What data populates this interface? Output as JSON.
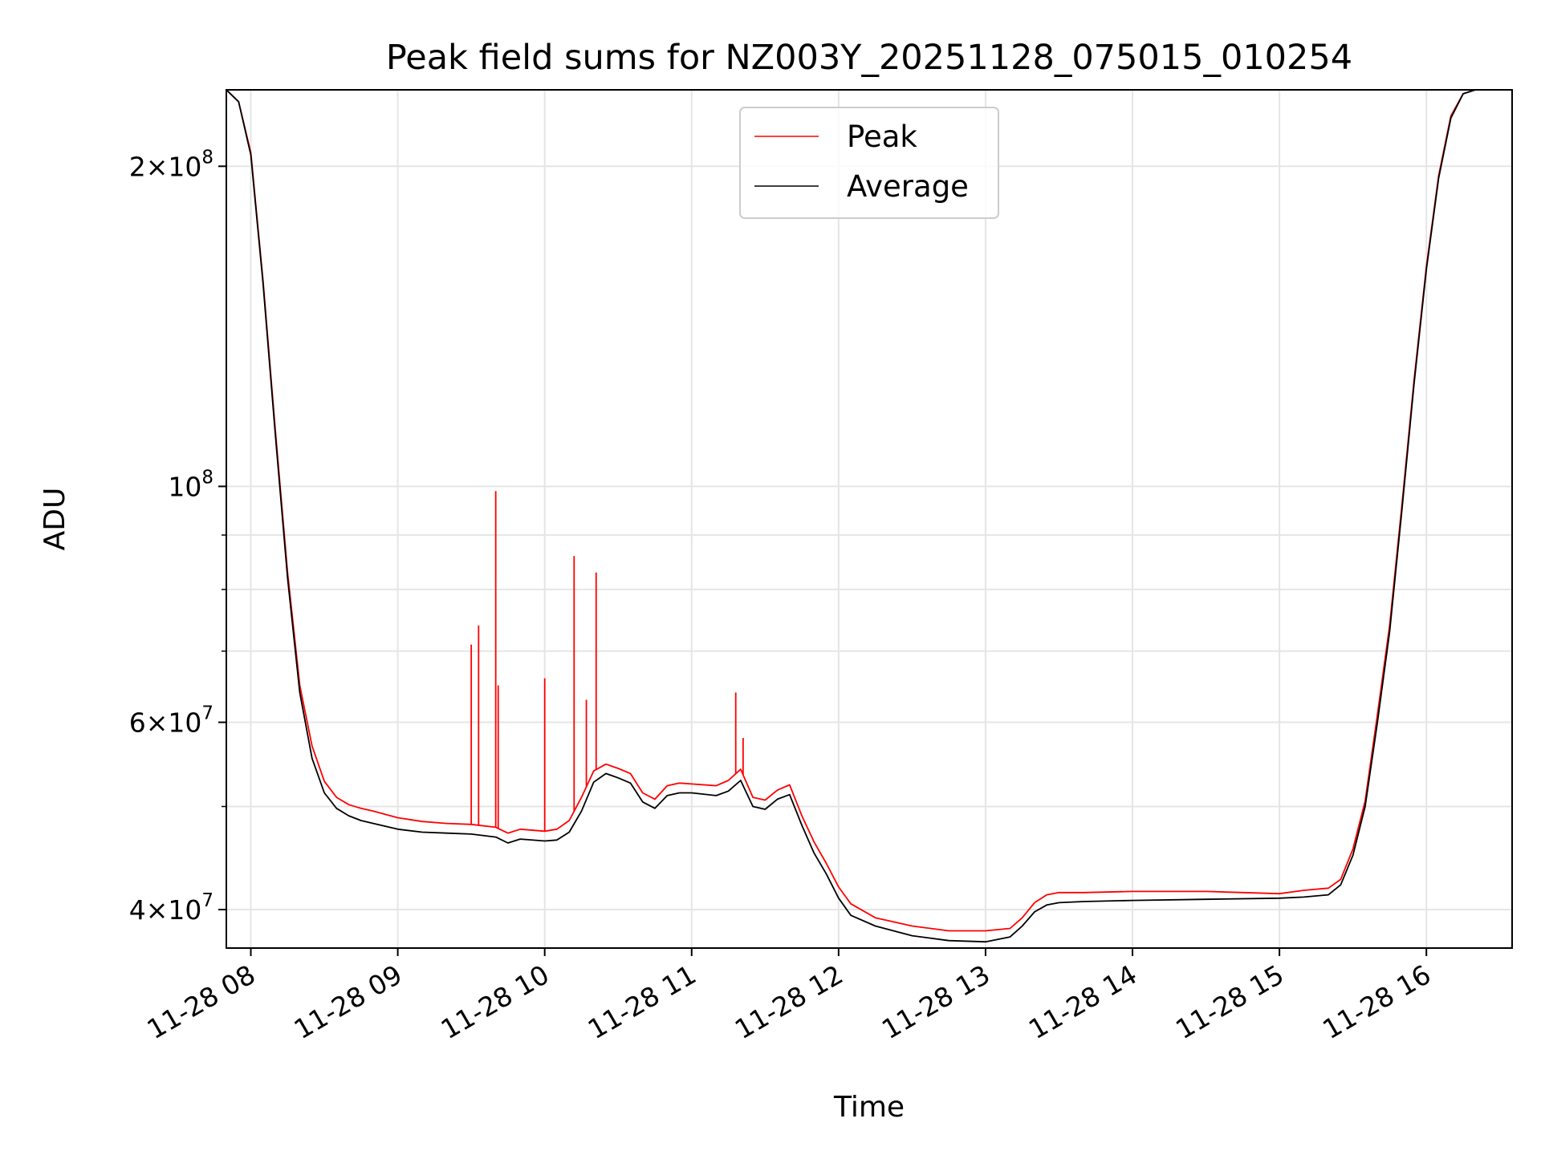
{
  "chart_data": {
    "type": "line",
    "title": "Peak field sums for NZ003Y_20251128_075015_010254",
    "xlabel": "Time",
    "ylabel": "ADU",
    "yscale": "log",
    "ylim": [
      36800000,
      236000000
    ],
    "xlim": [
      "2025-11-28 07:50",
      "2025-11-28 16:35"
    ],
    "grid": true,
    "legend": {
      "position": "top-center",
      "entries": [
        "Peak",
        "Average"
      ]
    },
    "colors": {
      "Peak": "#ff0000",
      "Average": "#000000",
      "grid": "#e5e5e5"
    },
    "x_ticks": [
      "11-28 08",
      "11-28 09",
      "11-28 10",
      "11-28 11",
      "11-28 12",
      "11-28 13",
      "11-28 14",
      "11-28 15",
      "11-28 16"
    ],
    "y_ticks": [
      {
        "value": 200000000,
        "mant": "2",
        "exp": "8"
      },
      {
        "value": 100000000,
        "mant": "",
        "exp": "8"
      },
      {
        "value": 60000000,
        "mant": "6",
        "exp": "7"
      },
      {
        "value": 40000000,
        "mant": "4",
        "exp": "7"
      }
    ],
    "series": [
      {
        "name": "Average",
        "x": [
          "2025-11-28 07:50",
          "2025-11-28 07:55",
          "2025-11-28 08:00",
          "2025-11-28 08:05",
          "2025-11-28 08:10",
          "2025-11-28 08:15",
          "2025-11-28 08:20",
          "2025-11-28 08:25",
          "2025-11-28 08:30",
          "2025-11-28 08:35",
          "2025-11-28 08:40",
          "2025-11-28 08:45",
          "2025-11-28 08:50",
          "2025-11-28 09:00",
          "2025-11-28 09:10",
          "2025-11-28 09:20",
          "2025-11-28 09:30",
          "2025-11-28 09:40",
          "2025-11-28 09:45",
          "2025-11-28 09:50",
          "2025-11-28 10:00",
          "2025-11-28 10:05",
          "2025-11-28 10:10",
          "2025-11-28 10:15",
          "2025-11-28 10:20",
          "2025-11-28 10:25",
          "2025-11-28 10:30",
          "2025-11-28 10:35",
          "2025-11-28 10:40",
          "2025-11-28 10:45",
          "2025-11-28 10:50",
          "2025-11-28 10:55",
          "2025-11-28 11:00",
          "2025-11-28 11:10",
          "2025-11-28 11:15",
          "2025-11-28 11:20",
          "2025-11-28 11:25",
          "2025-11-28 11:30",
          "2025-11-28 11:35",
          "2025-11-28 11:40",
          "2025-11-28 11:45",
          "2025-11-28 11:50",
          "2025-11-28 11:55",
          "2025-11-28 12:00",
          "2025-11-28 12:05",
          "2025-11-28 12:15",
          "2025-11-28 12:30",
          "2025-11-28 12:45",
          "2025-11-28 13:00",
          "2025-11-28 13:10",
          "2025-11-28 13:15",
          "2025-11-28 13:20",
          "2025-11-28 13:25",
          "2025-11-28 13:30",
          "2025-11-28 13:40",
          "2025-11-28 14:00",
          "2025-11-28 14:30",
          "2025-11-28 15:00",
          "2025-11-28 15:10",
          "2025-11-28 15:20",
          "2025-11-28 15:25",
          "2025-11-28 15:30",
          "2025-11-28 15:35",
          "2025-11-28 15:40",
          "2025-11-28 15:45",
          "2025-11-28 15:50",
          "2025-11-28 15:55",
          "2025-11-28 16:00",
          "2025-11-28 16:05",
          "2025-11-28 16:10",
          "2025-11-28 16:15",
          "2025-11-28 16:20",
          "2025-11-28 16:25",
          "2025-11-28 16:30",
          "2025-11-28 16:35"
        ],
        "values": [
          236000000,
          230000000,
          205000000,
          155000000,
          112000000,
          82000000,
          64000000,
          55500000,
          51500000,
          49800000,
          49000000,
          48500000,
          48200000,
          47600000,
          47300000,
          47200000,
          47100000,
          46800000,
          46200000,
          46600000,
          46400000,
          46500000,
          47300000,
          49500000,
          52700000,
          53700000,
          53200000,
          52600000,
          50500000,
          49800000,
          51200000,
          51500000,
          51500000,
          51200000,
          51700000,
          52900000,
          50000000,
          49700000,
          50800000,
          51300000,
          48000000,
          45200000,
          43200000,
          41000000,
          39500000,
          38600000,
          37800000,
          37400000,
          37300000,
          37700000,
          38600000,
          39800000,
          40400000,
          40600000,
          40700000,
          40800000,
          40900000,
          41000000,
          41100000,
          41300000,
          42200000,
          45000000,
          50000000,
          60000000,
          73000000,
          95000000,
          125000000,
          160000000,
          195000000,
          222000000,
          234000000,
          236000000,
          236000000,
          236000000,
          236000000
        ]
      },
      {
        "name": "Peak",
        "x": [
          "2025-11-28 07:50",
          "2025-11-28 07:55",
          "2025-11-28 08:00",
          "2025-11-28 08:05",
          "2025-11-28 08:10",
          "2025-11-28 08:15",
          "2025-11-28 08:20",
          "2025-11-28 08:25",
          "2025-11-28 08:30",
          "2025-11-28 08:35",
          "2025-11-28 08:40",
          "2025-11-28 08:45",
          "2025-11-28 08:50",
          "2025-11-28 09:00",
          "2025-11-28 09:10",
          "2025-11-28 09:20",
          "2025-11-28 09:30",
          "2025-11-28 09:40",
          "2025-11-28 09:45",
          "2025-11-28 09:50",
          "2025-11-28 10:00",
          "2025-11-28 10:05",
          "2025-11-28 10:10",
          "2025-11-28 10:15",
          "2025-11-28 10:20",
          "2025-11-28 10:25",
          "2025-11-28 10:30",
          "2025-11-28 10:35",
          "2025-11-28 10:40",
          "2025-11-28 10:45",
          "2025-11-28 10:50",
          "2025-11-28 10:55",
          "2025-11-28 11:00",
          "2025-11-28 11:10",
          "2025-11-28 11:15",
          "2025-11-28 11:20",
          "2025-11-28 11:25",
          "2025-11-28 11:30",
          "2025-11-28 11:35",
          "2025-11-28 11:40",
          "2025-11-28 11:45",
          "2025-11-28 11:50",
          "2025-11-28 11:55",
          "2025-11-28 12:00",
          "2025-11-28 12:05",
          "2025-11-28 12:15",
          "2025-11-28 12:30",
          "2025-11-28 12:45",
          "2025-11-28 13:00",
          "2025-11-28 13:10",
          "2025-11-28 13:15",
          "2025-11-28 13:20",
          "2025-11-28 13:25",
          "2025-11-28 13:30",
          "2025-11-28 13:40",
          "2025-11-28 14:00",
          "2025-11-28 14:30",
          "2025-11-28 15:00",
          "2025-11-28 15:10",
          "2025-11-28 15:20",
          "2025-11-28 15:25",
          "2025-11-28 15:30",
          "2025-11-28 15:35",
          "2025-11-28 15:40",
          "2025-11-28 15:45",
          "2025-11-28 15:50",
          "2025-11-28 15:55",
          "2025-11-28 16:00",
          "2025-11-28 16:05",
          "2025-11-28 16:10",
          "2025-11-28 16:15",
          "2025-11-28 16:20",
          "2025-11-28 16:25",
          "2025-11-28 16:30",
          "2025-11-28 16:35"
        ],
        "values": [
          236000000,
          230000000,
          206000000,
          156000000,
          113000000,
          83000000,
          65000000,
          57000000,
          52800000,
          51000000,
          50200000,
          49800000,
          49500000,
          48800000,
          48400000,
          48200000,
          48100000,
          47800000,
          47200000,
          47600000,
          47400000,
          47600000,
          48500000,
          51000000,
          54000000,
          54800000,
          54300000,
          53700000,
          51500000,
          50800000,
          52300000,
          52600000,
          52500000,
          52300000,
          52900000,
          54200000,
          51000000,
          50700000,
          51800000,
          52400000,
          49000000,
          46300000,
          44200000,
          42000000,
          40500000,
          39300000,
          38600000,
          38200000,
          38200000,
          38400000,
          39300000,
          40600000,
          41300000,
          41500000,
          41500000,
          41600000,
          41600000,
          41400000,
          41700000,
          41900000,
          42700000,
          45600000,
          50600000,
          61000000,
          74000000,
          96000000,
          126000000,
          161000000,
          196000000,
          223000000,
          234000000,
          236000000,
          236000000,
          236000000,
          236000000
        ],
        "spikes": [
          {
            "x": "2025-11-28 09:30",
            "value": 71000000
          },
          {
            "x": "2025-11-28 09:33",
            "value": 74000000
          },
          {
            "x": "2025-11-28 09:40",
            "value": 99000000
          },
          {
            "x": "2025-11-28 09:41",
            "value": 65000000
          },
          {
            "x": "2025-11-28 10:00",
            "value": 66000000
          },
          {
            "x": "2025-11-28 10:12",
            "value": 86000000
          },
          {
            "x": "2025-11-28 10:17",
            "value": 63000000
          },
          {
            "x": "2025-11-28 10:21",
            "value": 83000000
          },
          {
            "x": "2025-11-28 11:18",
            "value": 64000000
          },
          {
            "x": "2025-11-28 11:21",
            "value": 58000000
          }
        ]
      }
    ]
  }
}
